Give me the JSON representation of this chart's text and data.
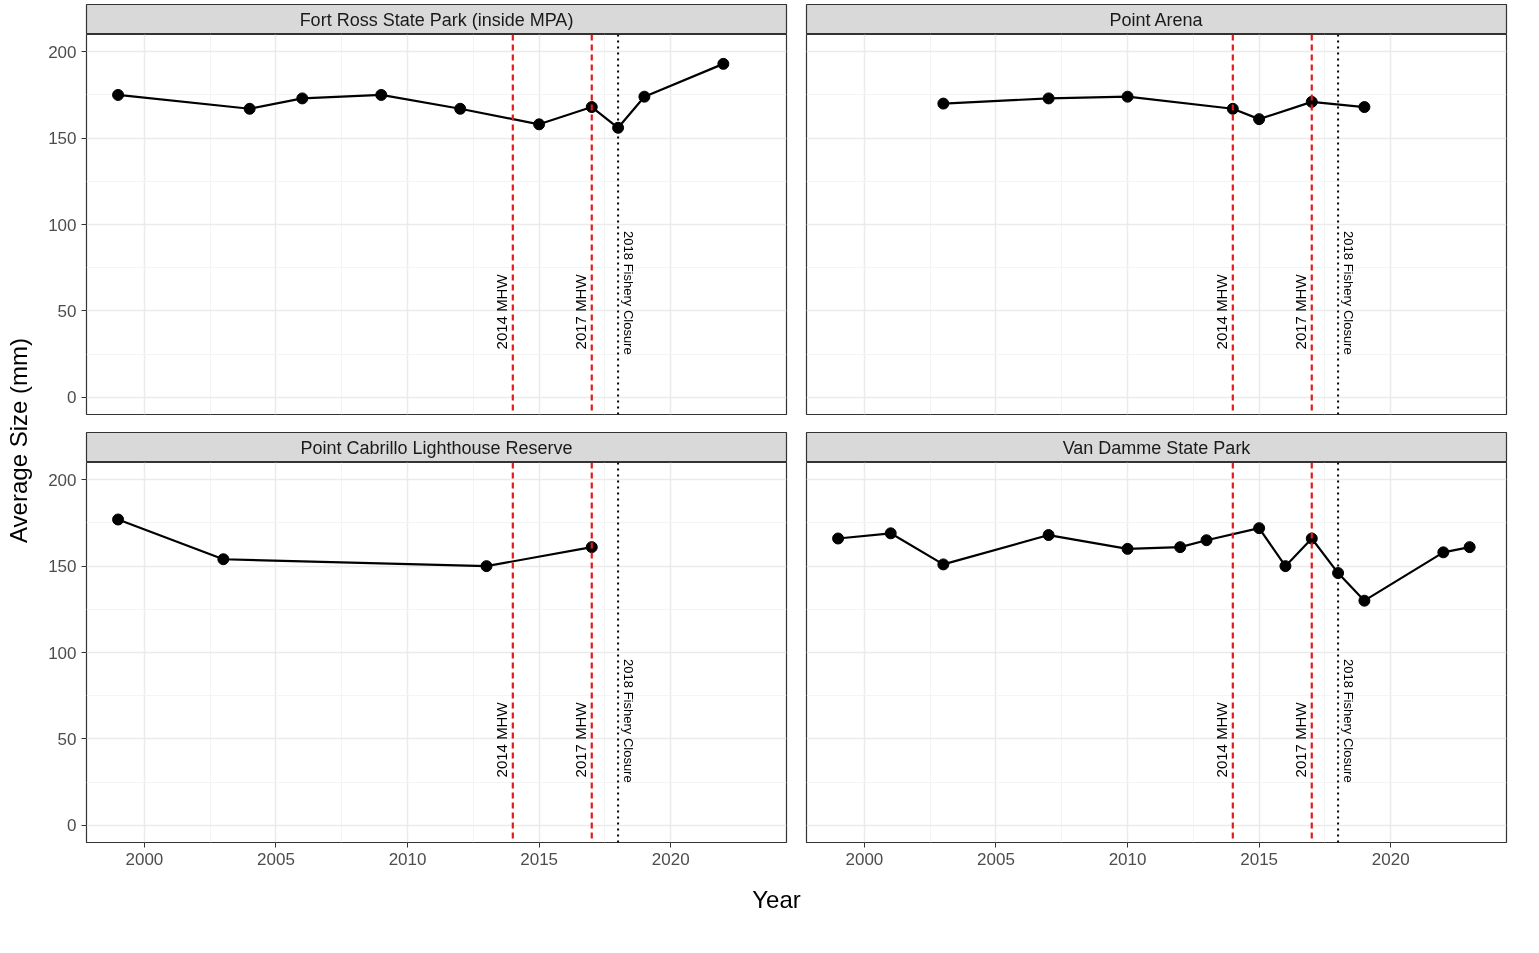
{
  "chart_data": [
    {
      "type": "line",
      "title": "Fort Ross State Park (inside MPA)",
      "ylabel": "Average Size (mm)",
      "tick_labels": "y",
      "x": [
        1999,
        2004,
        2006,
        2009,
        2012,
        2015,
        2017,
        2018,
        2019,
        2022
      ],
      "series": [
        {
          "color": "#000000",
          "values": [
            175,
            167,
            173,
            175,
            167,
            158,
            168,
            156,
            174,
            193
          ]
        }
      ],
      "xlim": [
        1997.8,
        2024.4
      ],
      "ylim": [
        -10,
        210
      ],
      "xticks": [
        2000,
        2005,
        2010,
        2015,
        2020
      ],
      "yticks": [
        0,
        50,
        100,
        150,
        200
      ],
      "grid": true,
      "marker": "circle",
      "line_style": "solid",
      "ref_lines": [
        {
          "axis": "x",
          "value": 2014,
          "label": "2014 MHW",
          "color": "#e41a1c",
          "line_style": "dashed"
        },
        {
          "axis": "x",
          "value": 2017,
          "label": "2017 MHW",
          "color": "#e41a1c",
          "line_style": "dashed"
        },
        {
          "axis": "x",
          "value": 2018,
          "label": "2018 Fishery Closure",
          "color": "#000000",
          "line_style": "dotted"
        }
      ]
    },
    {
      "type": "line",
      "title": "Point Arena",
      "tick_labels": false,
      "x": [
        2003,
        2007,
        2010,
        2014,
        2015,
        2017,
        2019
      ],
      "series": [
        {
          "color": "#000000",
          "values": [
            170,
            173,
            174,
            167,
            161,
            171,
            168
          ]
        }
      ],
      "xlim": [
        1997.8,
        2024.4
      ],
      "ylim": [
        -10,
        210
      ],
      "xticks": [
        2000,
        2005,
        2010,
        2015,
        2020
      ],
      "yticks": [
        0,
        50,
        100,
        150,
        200
      ],
      "grid": true,
      "marker": "circle",
      "line_style": "solid",
      "ref_lines": [
        {
          "axis": "x",
          "value": 2014,
          "label": "2014 MHW",
          "color": "#e41a1c",
          "line_style": "dashed"
        },
        {
          "axis": "x",
          "value": 2017,
          "label": "2017 MHW",
          "color": "#e41a1c",
          "line_style": "dashed"
        },
        {
          "axis": "x",
          "value": 2018,
          "label": "2018 Fishery Closure",
          "color": "#000000",
          "line_style": "dotted"
        }
      ]
    },
    {
      "type": "line",
      "title": "Point Cabrillo Lighthouse Reserve",
      "xlabel": "Year",
      "x": [
        1999,
        2003,
        2013,
        2017
      ],
      "series": [
        {
          "color": "#000000",
          "values": [
            177,
            154,
            150,
            161
          ]
        }
      ],
      "xlim": [
        1997.8,
        2024.4
      ],
      "ylim": [
        -10,
        210
      ],
      "xticks": [
        2000,
        2005,
        2010,
        2015,
        2020
      ],
      "yticks": [
        0,
        50,
        100,
        150,
        200
      ],
      "grid": true,
      "marker": "circle",
      "line_style": "solid",
      "ref_lines": [
        {
          "axis": "x",
          "value": 2014,
          "label": "2014 MHW",
          "color": "#e41a1c",
          "line_style": "dashed"
        },
        {
          "axis": "x",
          "value": 2017,
          "label": "2017 MHW",
          "color": "#e41a1c",
          "line_style": "dashed"
        },
        {
          "axis": "x",
          "value": 2018,
          "label": "2018 Fishery Closure",
          "color": "#000000",
          "line_style": "dotted"
        }
      ]
    },
    {
      "type": "line",
      "title": "Van Damme State Park",
      "tick_labels": "x",
      "x": [
        1999,
        2001,
        2003,
        2007,
        2010,
        2012,
        2013,
        2015,
        2016,
        2017,
        2018,
        2019,
        2022,
        2023
      ],
      "series": [
        {
          "color": "#000000",
          "values": [
            166,
            169,
            151,
            168,
            160,
            161,
            165,
            172,
            150,
            166,
            146,
            130,
            158,
            161
          ]
        }
      ],
      "xlim": [
        1997.8,
        2024.4
      ],
      "ylim": [
        -10,
        210
      ],
      "xticks": [
        2000,
        2005,
        2010,
        2015,
        2020
      ],
      "yticks": [
        0,
        50,
        100,
        150,
        200
      ],
      "grid": true,
      "marker": "circle",
      "line_style": "solid",
      "ref_lines": [
        {
          "axis": "x",
          "value": 2014,
          "label": "2014 MHW",
          "color": "#e41a1c",
          "line_style": "dashed"
        },
        {
          "axis": "x",
          "value": 2017,
          "label": "2017 MHW",
          "color": "#e41a1c",
          "line_style": "dashed"
        },
        {
          "axis": "x",
          "value": 2018,
          "label": "2018 Fishery Closure",
          "color": "#000000",
          "line_style": "dotted"
        }
      ]
    }
  ]
}
